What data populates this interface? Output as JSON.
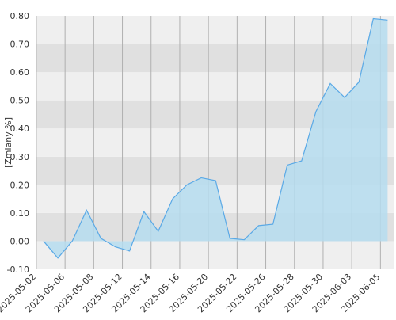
{
  "chart_data": {
    "type": "area",
    "y_label": "[Zmiany %]",
    "categories": [
      "2025-05-02",
      null,
      "2025-05-06",
      null,
      "2025-05-08",
      null,
      "2025-05-12",
      null,
      "2025-05-14",
      null,
      "2025-05-16",
      null,
      "2025-05-20",
      null,
      "2025-05-22",
      null,
      "2025-05-26",
      null,
      "2025-05-28",
      null,
      "2025-05-30",
      null,
      "2025-06-03",
      null,
      "2025-06-05"
    ],
    "values": [
      0.0,
      -0.06,
      0.0,
      0.11,
      0.01,
      -0.02,
      -0.035,
      0.105,
      0.035,
      0.15,
      0.2,
      0.225,
      0.215,
      0.01,
      0.005,
      0.055,
      0.06,
      0.27,
      0.285,
      0.46,
      0.56,
      0.51,
      0.565,
      0.79,
      0.785
    ],
    "color": "#5aa9e6",
    "fill": "#b5dcef",
    "ylim": [
      -0.1,
      0.8
    ],
    "yticks": [
      {
        "value": -0.1,
        "label": "-0.10"
      },
      {
        "value": 0,
        "label": "0.00"
      },
      {
        "value": 0.1,
        "label": "0.10"
      },
      {
        "value": 0.2,
        "label": "0.20"
      },
      {
        "value": 0.3,
        "label": "0.30"
      },
      {
        "value": 0.4,
        "label": "0.40"
      },
      {
        "value": 0.5,
        "label": "0.50"
      },
      {
        "value": 0.6,
        "label": "0.60"
      },
      {
        "value": 0.7,
        "label": "0.70"
      },
      {
        "value": 0.8,
        "label": "0.80"
      }
    ],
    "grid": true
  }
}
